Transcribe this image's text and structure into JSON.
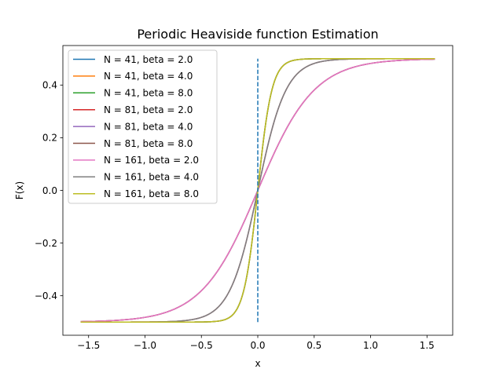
{
  "chart_data": {
    "type": "line",
    "title": "Periodic Heaviside function Estimation",
    "xlabel": "x",
    "ylabel": "F(x)",
    "xlim": [
      -1.728,
      1.728
    ],
    "ylim": [
      -0.55,
      0.55
    ],
    "x_ticks": [
      -1.5,
      -1.0,
      -0.5,
      0.0,
      0.5,
      1.0,
      1.5
    ],
    "x_tick_labels": [
      "−1.5",
      "−1.0",
      "−0.5",
      "0.0",
      "0.5",
      "1.0",
      "1.5"
    ],
    "y_ticks": [
      -0.4,
      -0.2,
      0.0,
      0.2,
      0.4
    ],
    "y_tick_labels": [
      "−0.4",
      "−0.2",
      "0.0",
      "0.2",
      "0.4"
    ],
    "x_range": [
      -1.5708,
      1.5708
    ],
    "grid": false,
    "legend_position": "top-left",
    "series": [
      {
        "name": "N = 41, beta = 2.0",
        "beta": 2.0,
        "color": "#1f77b4"
      },
      {
        "name": "N = 41, beta = 4.0",
        "beta": 4.0,
        "color": "#ff7f0e"
      },
      {
        "name": "N = 41, beta = 8.0",
        "beta": 8.0,
        "color": "#2ca02c"
      },
      {
        "name": "N = 81, beta = 2.0",
        "beta": 2.0,
        "color": "#d62728"
      },
      {
        "name": "N = 81, beta = 4.0",
        "beta": 4.0,
        "color": "#9467bd"
      },
      {
        "name": "N = 81, beta = 8.0",
        "beta": 8.0,
        "color": "#8c564b"
      },
      {
        "name": "N = 161, beta = 2.0",
        "beta": 2.0,
        "color": "#e377c2"
      },
      {
        "name": "N = 161, beta = 4.0",
        "beta": 4.0,
        "color": "#7f7f7f"
      },
      {
        "name": "N = 161, beta = 8.0",
        "beta": 8.0,
        "color": "#bcbd22"
      }
    ],
    "vertical_line": {
      "x": 0.0,
      "y_range": [
        -0.5,
        0.5
      ],
      "style": "dashed",
      "color": "#1f77b4"
    }
  }
}
